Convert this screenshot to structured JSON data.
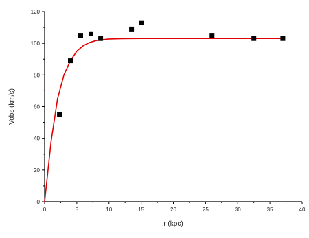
{
  "chart_data": {
    "type": "scatter",
    "title": "",
    "xlabel": "r (kpc)",
    "ylabel": "Vobs (km/s)",
    "xlim": [
      0,
      40
    ],
    "ylim": [
      0,
      120
    ],
    "x_ticks": [
      "0",
      "5",
      "10",
      "15",
      "20",
      "25",
      "30",
      "35",
      "40"
    ],
    "y_ticks": [
      "0",
      "20",
      "40",
      "60",
      "80",
      "100",
      "120"
    ],
    "grid": false,
    "legend": "none",
    "series": [
      {
        "type": "scatter",
        "marker": "square",
        "color": "#000000",
        "x": [
          2.3,
          4.0,
          5.6,
          7.2,
          8.7,
          13.5,
          15.0,
          26.0,
          32.5,
          37.0
        ],
        "y": [
          55,
          89,
          105,
          106,
          103,
          109,
          113,
          105,
          103,
          103
        ]
      },
      {
        "type": "line",
        "color": "#e00000",
        "x": [
          0,
          1,
          2,
          3,
          4,
          5,
          6,
          7,
          8,
          9,
          10,
          12,
          15,
          20,
          25,
          30,
          35,
          37
        ],
        "y": [
          0,
          38,
          65,
          80,
          89,
          95,
          98.5,
          100.5,
          101.7,
          102.3,
          102.7,
          102.9,
          103,
          103,
          103,
          103,
          103,
          103
        ]
      }
    ]
  }
}
